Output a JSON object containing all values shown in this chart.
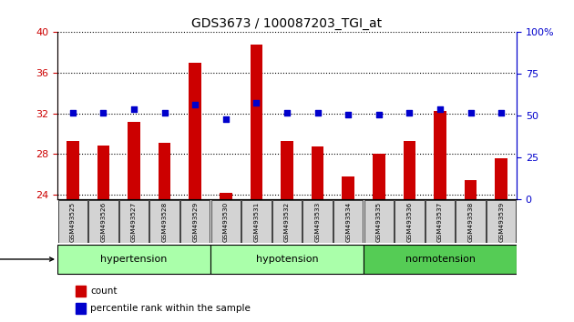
{
  "title": "GDS3673 / 100087203_TGI_at",
  "samples": [
    "GSM493525",
    "GSM493526",
    "GSM493527",
    "GSM493528",
    "GSM493529",
    "GSM493530",
    "GSM493531",
    "GSM493532",
    "GSM493533",
    "GSM493534",
    "GSM493535",
    "GSM493536",
    "GSM493537",
    "GSM493538",
    "GSM493539"
  ],
  "counts": [
    29.3,
    28.8,
    31.2,
    29.1,
    37.0,
    24.2,
    38.8,
    29.3,
    28.7,
    25.8,
    28.0,
    29.3,
    32.2,
    25.4,
    27.6
  ],
  "percentiles": [
    52,
    52,
    54,
    52,
    57,
    48,
    58,
    52,
    52,
    51,
    51,
    52,
    54,
    52,
    52
  ],
  "ylim_left": [
    23.5,
    40
  ],
  "ylim_right": [
    0,
    100
  ],
  "yticks_left": [
    24,
    28,
    32,
    36,
    40
  ],
  "yticks_right": [
    0,
    25,
    50,
    75,
    100
  ],
  "groups": [
    {
      "label": "hypertension",
      "start": 0,
      "end": 5
    },
    {
      "label": "hypotension",
      "start": 5,
      "end": 10
    },
    {
      "label": "normotension",
      "start": 10,
      "end": 15
    }
  ],
  "group_colors": [
    "#aaffaa",
    "#aaffaa",
    "#55cc55"
  ],
  "bar_color": "#cc0000",
  "dot_color": "#0000cc",
  "bar_bottom": 23.5,
  "left_axis_color": "#cc0000",
  "right_axis_color": "#0000cc"
}
